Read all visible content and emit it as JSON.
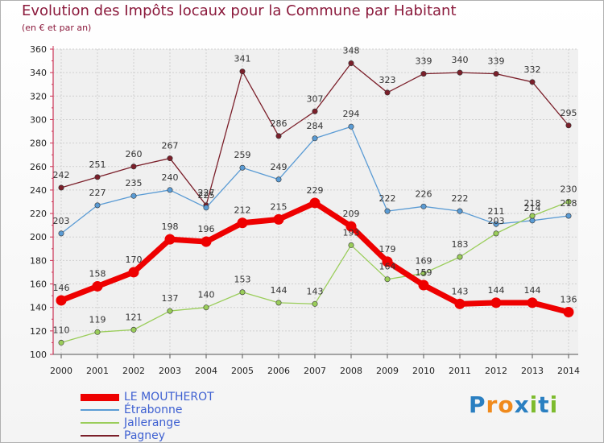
{
  "header": {
    "title": "Evolution des Impôts locaux pour la Commune par Habitant",
    "subtitle": "(en € et par an)"
  },
  "brand": {
    "letters": [
      "P",
      "r",
      "o",
      "x",
      "i",
      "t",
      "i"
    ],
    "colors": [
      "#2a7fc1",
      "#f08a1c",
      "#f08a1c",
      "#2a7fc1",
      "#7dbb2d",
      "#2a7fc1",
      "#7dbb2d"
    ]
  },
  "chart_data": {
    "type": "line",
    "title": "Evolution des Impôts locaux pour la Commune par Habitant",
    "subtitle": "(en € et par an)",
    "xlabel": "",
    "ylabel": "",
    "x": [
      "2000",
      "2001",
      "2002",
      "2003",
      "2004",
      "2005",
      "2006",
      "2007",
      "2008",
      "2009",
      "2010",
      "2011",
      "2012",
      "2013",
      "2014"
    ],
    "ylim": [
      100,
      360
    ],
    "yticks": [
      100,
      120,
      140,
      160,
      180,
      200,
      220,
      240,
      260,
      280,
      300,
      320,
      340,
      360
    ],
    "grid": true,
    "legend_position": "bottom-left",
    "series": [
      {
        "name": "LE MOUTHEROT",
        "color": "#ee0000",
        "legend_text_color": "#3d5fd1",
        "values": [
          146,
          158,
          170,
          198,
          196,
          212,
          215,
          229,
          209,
          179,
          159,
          143,
          144,
          144,
          136
        ],
        "labels": [
          "146",
          "158",
          "170",
          "198",
          "196",
          "212",
          "215",
          "229",
          "209",
          "179",
          "159",
          "143",
          "144",
          "144",
          "136"
        ]
      },
      {
        "name": "Étrabonne",
        "color": "#5a9bd4",
        "legend_text_color": "#3d5fd1",
        "values": [
          203,
          227,
          235,
          240,
          225,
          259,
          249,
          284,
          294,
          222,
          226,
          222,
          211,
          214,
          218
        ],
        "labels": [
          "203",
          "227",
          "235",
          "240",
          "225",
          "259",
          "249",
          "284",
          "294",
          "222",
          "226",
          "222",
          "211",
          "214",
          "218"
        ]
      },
      {
        "name": "Jallerange",
        "color": "#9acd5a",
        "legend_text_color": "#3d5fd1",
        "values": [
          110,
          119,
          121,
          137,
          140,
          153,
          144,
          143,
          193,
          164,
          169,
          183,
          203,
          218,
          230
        ],
        "labels": [
          "110",
          "119",
          "121",
          "137",
          "140",
          "153",
          "144",
          "143",
          "193",
          "164",
          "169",
          "183",
          "203",
          "218",
          "230"
        ]
      },
      {
        "name": "Pagney",
        "color": "#7b1f2a",
        "legend_text_color": "#3d5fd1",
        "values": [
          242,
          251,
          260,
          267,
          227,
          341,
          286,
          307,
          348,
          323,
          339,
          340,
          339,
          332,
          295
        ],
        "labels": [
          "242",
          "251",
          "260",
          "267",
          "227",
          "341",
          "286",
          "307",
          "348",
          "323",
          "339",
          "340",
          "339",
          "332",
          "295"
        ]
      }
    ]
  }
}
